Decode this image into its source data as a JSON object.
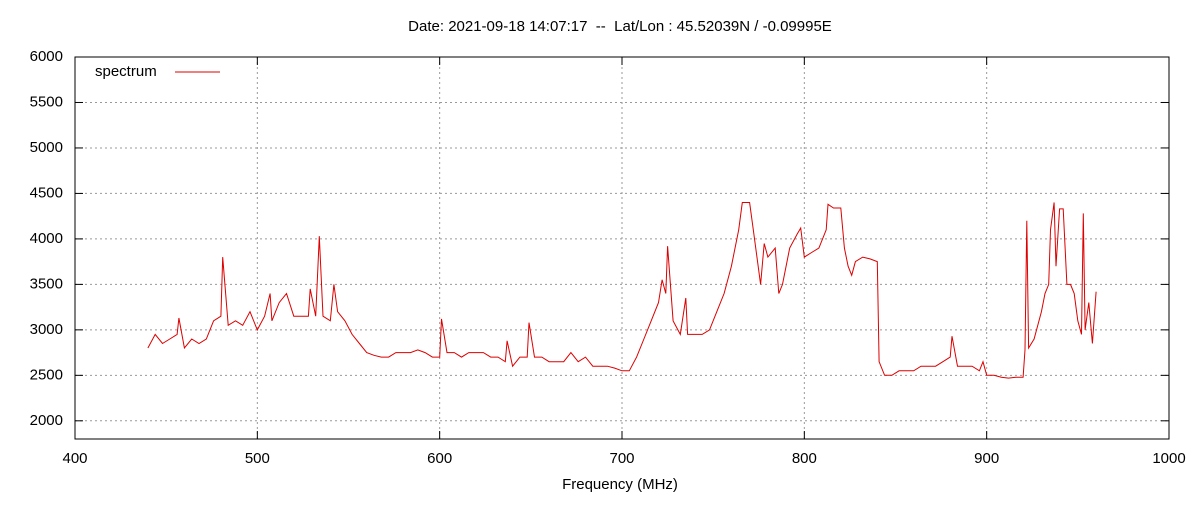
{
  "chart_data": {
    "type": "line",
    "title": "Date: 2021-09-18 14:07:17  --  Lat/Lon : 45.52039N / -0.09995E",
    "x_label": "Frequency (MHz)",
    "xlim": [
      400,
      1000
    ],
    "xticks": [
      400,
      500,
      600,
      700,
      800,
      900,
      1000
    ],
    "ylim": [
      1800,
      6000
    ],
    "yticks": [
      2000,
      2500,
      3000,
      3500,
      4000,
      4500,
      5000,
      5500,
      6000
    ],
    "grid": true,
    "legend": "top-left",
    "series": [
      {
        "name": "spectrum",
        "color": "#dd0000",
        "x": [
          440,
          444,
          448,
          452,
          456,
          457,
          460,
          464,
          468,
          472,
          476,
          480,
          481,
          484,
          488,
          492,
          496,
          500,
          504,
          507,
          508,
          512,
          516,
          520,
          524,
          528,
          529,
          532,
          534,
          536,
          540,
          542,
          544,
          548,
          552,
          556,
          560,
          564,
          568,
          572,
          576,
          580,
          584,
          588,
          592,
          596,
          600,
          601,
          604,
          608,
          612,
          616,
          620,
          624,
          628,
          632,
          636,
          637,
          640,
          644,
          648,
          649,
          652,
          656,
          660,
          664,
          668,
          672,
          676,
          680,
          684,
          688,
          692,
          696,
          700,
          704,
          708,
          712,
          716,
          720,
          722,
          724,
          725,
          728,
          732,
          735,
          736,
          740,
          744,
          748,
          752,
          756,
          760,
          764,
          766,
          770,
          772,
          776,
          778,
          780,
          784,
          786,
          788,
          792,
          796,
          798,
          800,
          804,
          808,
          812,
          813,
          816,
          820,
          822,
          824,
          826,
          828,
          832,
          836,
          840,
          841,
          844,
          848,
          852,
          856,
          860,
          864,
          868,
          872,
          876,
          880,
          881,
          884,
          888,
          892,
          896,
          898,
          900,
          904,
          908,
          912,
          916,
          920,
          921,
          922,
          923,
          926,
          930,
          932,
          934,
          935,
          937,
          938,
          940,
          942,
          944,
          946,
          948,
          950,
          952,
          953,
          954,
          956,
          958,
          960
        ],
        "values": [
          2800,
          2950,
          2850,
          2900,
          2950,
          3130,
          2800,
          2900,
          2850,
          2900,
          3100,
          3150,
          3800,
          3050,
          3100,
          3050,
          3200,
          3000,
          3150,
          3400,
          3100,
          3300,
          3400,
          3150,
          3150,
          3150,
          3450,
          3150,
          4030,
          3150,
          3100,
          3500,
          3200,
          3100,
          2950,
          2850,
          2750,
          2720,
          2700,
          2700,
          2750,
          2750,
          2750,
          2780,
          2750,
          2700,
          2700,
          3120,
          2750,
          2750,
          2700,
          2750,
          2750,
          2750,
          2700,
          2700,
          2650,
          2880,
          2600,
          2700,
          2700,
          3080,
          2700,
          2700,
          2650,
          2650,
          2650,
          2750,
          2650,
          2700,
          2600,
          2600,
          2600,
          2580,
          2550,
          2550,
          2700,
          2900,
          3100,
          3300,
          3550,
          3400,
          3920,
          3100,
          2950,
          3350,
          2950,
          2950,
          2950,
          3000,
          3200,
          3400,
          3700,
          4100,
          4400,
          4400,
          4100,
          3500,
          3950,
          3800,
          3900,
          3400,
          3500,
          3900,
          4050,
          4120,
          3800,
          3850,
          3900,
          4100,
          4380,
          4340,
          4340,
          3900,
          3700,
          3600,
          3750,
          3800,
          3780,
          3750,
          2650,
          2500,
          2500,
          2550,
          2550,
          2550,
          2600,
          2600,
          2600,
          2650,
          2700,
          2930,
          2600,
          2600,
          2600,
          2550,
          2650,
          2500,
          2500,
          2480,
          2470,
          2480,
          2480,
          2780,
          4200,
          2800,
          2900,
          3200,
          3400,
          3500,
          4100,
          4400,
          3700,
          4330,
          4330,
          3500,
          3500,
          3400,
          3100,
          2950,
          4280,
          3000,
          3300,
          2850,
          3420
        ]
      }
    ]
  }
}
